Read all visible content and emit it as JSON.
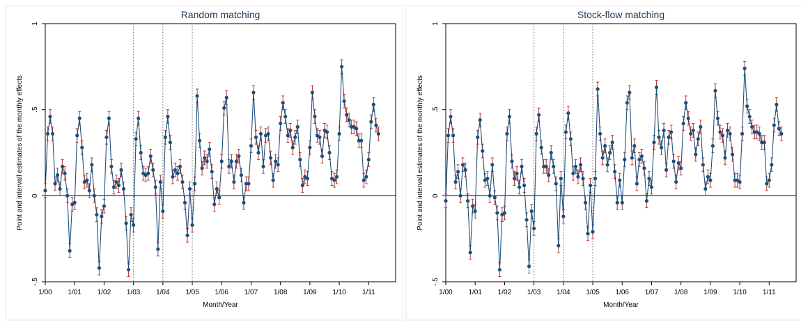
{
  "figure": {
    "shared": {
      "xlabel": "Month/Year",
      "ylabel": "Point and intervall estimates of the monthly effects",
      "xtick_labels": [
        "1/00",
        "1/01",
        "1/02",
        "1/03",
        "1/04",
        "1/05",
        "1/06",
        "1/07",
        "1/08",
        "1/09",
        "1/10",
        "1/11"
      ],
      "ytick_labels": [
        "-.5",
        "0",
        ".5",
        "1"
      ]
    },
    "colors": {
      "series": "#1f4e79",
      "ci": "#b22222",
      "zero_line": "#000000",
      "vline": "#666666"
    }
  },
  "chart_data": [
    {
      "type": "line",
      "title": "Random matching",
      "xlabel": "Month/Year",
      "ylabel": "Point and intervall estimates of the monthly effects",
      "x_unit": "month index from 1/00 (0 = 1/00)",
      "xlim": [
        0,
        143
      ],
      "ylim": [
        -0.5,
        1
      ],
      "yticks": [
        -0.5,
        0,
        0.5,
        1
      ],
      "ytick_labels": [
        "-.5",
        "0",
        ".5",
        "1"
      ],
      "xticks": [
        0,
        12,
        24,
        36,
        48,
        60,
        72,
        84,
        96,
        108,
        120,
        132
      ],
      "xtick_labels": [
        "1/00",
        "1/01",
        "1/02",
        "1/03",
        "1/04",
        "1/05",
        "1/06",
        "1/07",
        "1/08",
        "1/09",
        "1/10",
        "1/11"
      ],
      "reference_lines": {
        "horizontal": [
          0
        ],
        "vertical_dotted": [
          36,
          48,
          60
        ]
      },
      "ci_halfwidth": 0.04,
      "values": [
        0.03,
        0.36,
        0.46,
        0.36,
        0.07,
        0.12,
        0.04,
        0.17,
        0.13,
        0.0,
        -0.32,
        -0.05,
        -0.04,
        0.35,
        0.45,
        0.28,
        0.08,
        0.09,
        0.03,
        0.18,
        0.0,
        -0.11,
        -0.42,
        -0.12,
        -0.06,
        0.34,
        0.45,
        0.17,
        0.05,
        0.08,
        0.06,
        0.15,
        0.04,
        -0.16,
        -0.43,
        -0.11,
        -0.17,
        0.33,
        0.45,
        0.25,
        0.13,
        0.12,
        0.13,
        0.23,
        0.15,
        0.05,
        -0.31,
        0.08,
        -0.09,
        0.34,
        0.46,
        0.31,
        0.11,
        0.15,
        0.13,
        0.17,
        0.08,
        -0.04,
        -0.23,
        0.04,
        -0.17,
        0.07,
        0.58,
        0.32,
        0.16,
        0.22,
        0.2,
        0.27,
        0.14,
        -0.05,
        0.04,
        -0.01,
        0.2,
        0.51,
        0.57,
        0.17,
        0.2,
        0.08,
        0.2,
        0.23,
        0.12,
        -0.04,
        0.07,
        0.07,
        0.29,
        0.6,
        0.34,
        0.25,
        0.36,
        0.17,
        0.35,
        0.36,
        0.22,
        0.09,
        0.2,
        0.18,
        0.42,
        0.54,
        0.46,
        0.35,
        0.38,
        0.28,
        0.34,
        0.4,
        0.21,
        0.06,
        0.11,
        0.1,
        0.28,
        0.6,
        0.46,
        0.35,
        0.34,
        0.23,
        0.38,
        0.37,
        0.25,
        0.1,
        0.09,
        0.11,
        0.36,
        0.75,
        0.55,
        0.47,
        0.44,
        0.4,
        0.4,
        0.39,
        0.32,
        0.32,
        0.09,
        0.11,
        0.21,
        0.43,
        0.53,
        0.41,
        0.36
      ]
    },
    {
      "type": "line",
      "title": "Stock-flow matching",
      "xlabel": "Month/Year",
      "ylabel": "Point and intervall estimates of the monthly effects",
      "x_unit": "month index from 1/00 (0 = 1/00)",
      "xlim": [
        0,
        143
      ],
      "ylim": [
        -0.5,
        1
      ],
      "yticks": [
        -0.5,
        0,
        0.5,
        1
      ],
      "ytick_labels": [
        "-.5",
        "0",
        ".5",
        "1"
      ],
      "xticks": [
        0,
        12,
        24,
        36,
        48,
        60,
        72,
        84,
        96,
        108,
        120,
        132
      ],
      "xtick_labels": [
        "1/00",
        "1/01",
        "1/02",
        "1/03",
        "1/04",
        "1/05",
        "1/06",
        "1/07",
        "1/08",
        "1/09",
        "1/10",
        "1/11"
      ],
      "reference_lines": {
        "horizontal": [
          0
        ],
        "vertical_dotted": [
          36,
          48,
          60
        ]
      },
      "ci_halfwidth": 0.04,
      "values": [
        -0.03,
        0.35,
        0.46,
        0.35,
        0.08,
        0.14,
        0.0,
        0.18,
        0.15,
        -0.03,
        -0.33,
        -0.06,
        -0.09,
        0.34,
        0.44,
        0.26,
        0.09,
        0.1,
        0.0,
        0.18,
        -0.01,
        -0.1,
        -0.43,
        -0.11,
        -0.1,
        0.36,
        0.46,
        0.2,
        0.1,
        0.13,
        0.05,
        0.17,
        0.06,
        -0.14,
        -0.41,
        -0.09,
        -0.19,
        0.36,
        0.47,
        0.28,
        0.17,
        0.17,
        0.12,
        0.25,
        0.17,
        0.07,
        -0.29,
        0.1,
        -0.12,
        0.37,
        0.48,
        0.33,
        0.13,
        0.17,
        0.11,
        0.18,
        0.1,
        -0.04,
        -0.22,
        0.06,
        -0.21,
        0.1,
        0.62,
        0.36,
        0.22,
        0.29,
        0.18,
        0.25,
        0.31,
        0.14,
        -0.04,
        0.09,
        -0.04,
        0.21,
        0.54,
        0.6,
        0.22,
        0.29,
        0.07,
        0.21,
        0.23,
        0.16,
        -0.03,
        0.1,
        0.05,
        0.31,
        0.63,
        0.34,
        0.28,
        0.38,
        0.15,
        0.34,
        0.37,
        0.2,
        0.08,
        0.19,
        0.16,
        0.42,
        0.54,
        0.45,
        0.36,
        0.38,
        0.24,
        0.33,
        0.4,
        0.18,
        0.04,
        0.11,
        0.09,
        0.29,
        0.61,
        0.45,
        0.37,
        0.35,
        0.22,
        0.38,
        0.36,
        0.24,
        0.09,
        0.09,
        0.08,
        0.36,
        0.74,
        0.52,
        0.46,
        0.4,
        0.37,
        0.37,
        0.36,
        0.31,
        0.31,
        0.07,
        0.09,
        0.18,
        0.41,
        0.53,
        0.39,
        0.36
      ]
    }
  ]
}
